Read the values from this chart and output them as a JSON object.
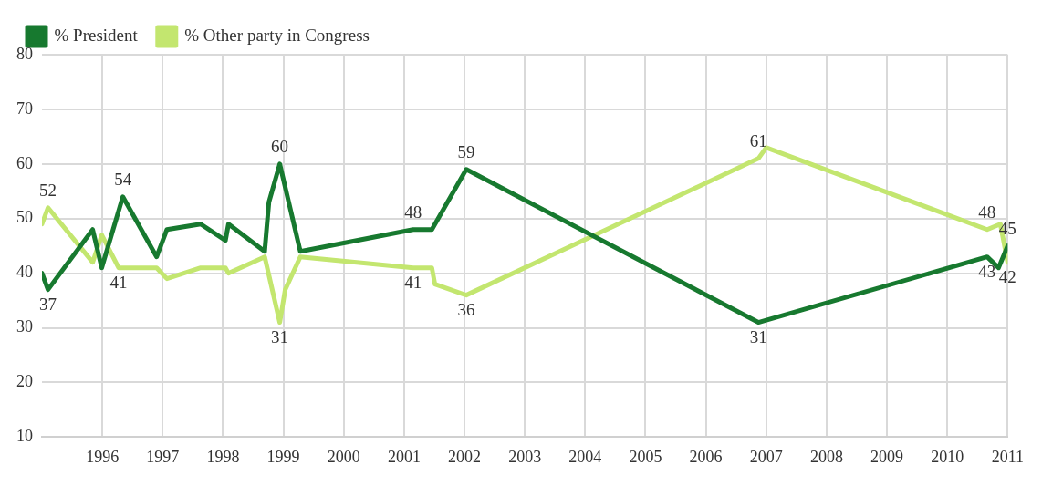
{
  "chart_data": {
    "type": "line",
    "xlim": [
      1995,
      2011
    ],
    "xticks": [
      1996,
      1997,
      1998,
      1999,
      2000,
      2001,
      2002,
      2003,
      2004,
      2005,
      2006,
      2007,
      2008,
      2009,
      2010,
      2011
    ],
    "ylim": [
      10,
      80
    ],
    "yticks": [
      10,
      20,
      30,
      40,
      50,
      60,
      70,
      80
    ],
    "grid": true,
    "legend": "top left",
    "marker": "none",
    "line_style": "solid",
    "series": [
      {
        "name": "% President",
        "color": "#17792f",
        "x": [
          1995.0,
          1995.1,
          1995.84,
          1995.99,
          1996.34,
          1996.9,
          1997.07,
          1997.63,
          1998.04,
          1998.09,
          1998.69,
          1998.76,
          1998.94,
          1999.28,
          2001.15,
          2001.46,
          2002.03,
          2006.87,
          2010.66,
          2010.85,
          2011.0
        ],
        "values": [
          40,
          37,
          48,
          41,
          54,
          43,
          48,
          49,
          46,
          49,
          44,
          53,
          60,
          44,
          48,
          48,
          59,
          31,
          43,
          41,
          45
        ],
        "value_labels": [
          null,
          "37",
          null,
          null,
          "54",
          null,
          null,
          null,
          null,
          null,
          null,
          null,
          "60",
          null,
          "48",
          null,
          "59",
          "31",
          "43",
          null,
          "45"
        ]
      },
      {
        "name": "% Other party in Congress",
        "color": "#c3e66f",
        "x": [
          1995.0,
          1995.1,
          1995.84,
          1995.99,
          1996.27,
          1996.9,
          1997.07,
          1997.63,
          1998.04,
          1998.09,
          1998.69,
          1998.94,
          1999.03,
          1999.28,
          2001.15,
          2001.46,
          2001.51,
          2002.03,
          2006.87,
          2007.0,
          2010.66,
          2010.88,
          2011.0
        ],
        "values": [
          49,
          52,
          42,
          47,
          41,
          41,
          39,
          41,
          41,
          40,
          43,
          31,
          37,
          43,
          41,
          41,
          38,
          36,
          61,
          63,
          48,
          49,
          42
        ],
        "value_labels": [
          null,
          "52",
          null,
          null,
          "41",
          null,
          null,
          null,
          null,
          null,
          null,
          "31",
          null,
          null,
          "41",
          null,
          null,
          "36",
          "61",
          null,
          "48",
          null,
          "42"
        ]
      }
    ]
  }
}
